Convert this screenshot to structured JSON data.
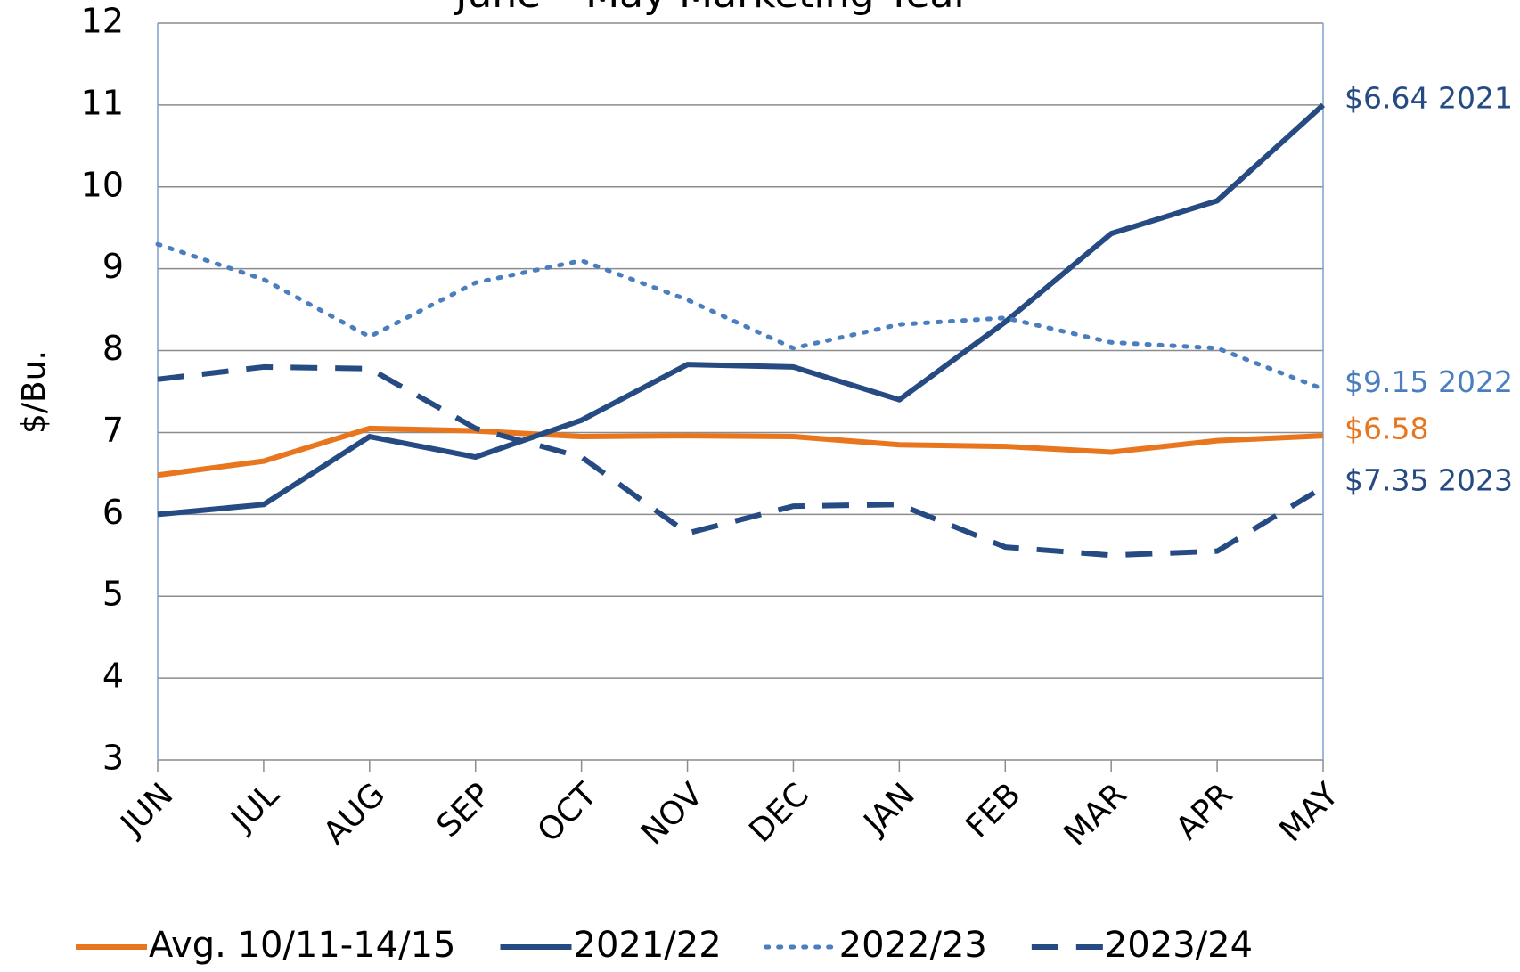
{
  "chart_data": {
    "type": "line",
    "title": "June – May Marketing Year",
    "y_label": "$/Bu.",
    "categories": [
      "JUN",
      "JUL",
      "AUG",
      "SEP",
      "OCT",
      "NOV",
      "DEC",
      "JAN",
      "FEB",
      "MAR",
      "APR",
      "MAY"
    ],
    "ylim": [
      3,
      12
    ],
    "yticks": [
      3,
      4,
      5,
      6,
      7,
      8,
      9,
      10,
      11,
      12
    ],
    "grid": true,
    "legend": "bottom",
    "series": [
      {
        "name": "Avg. 10/11-14/15",
        "color": "#e8761e",
        "dash": "solid",
        "end_label": "$6.58",
        "values": [
          6.48,
          6.65,
          7.05,
          7.02,
          6.95,
          6.96,
          6.95,
          6.85,
          6.83,
          6.76,
          6.9,
          6.96
        ]
      },
      {
        "name": "2021/22",
        "color": "#264b82",
        "dash": "solid",
        "end_label": "$6.64 2021",
        "values": [
          6.0,
          6.12,
          6.95,
          6.7,
          7.15,
          7.83,
          7.8,
          7.4,
          8.35,
          9.43,
          9.83,
          11.0
        ]
      },
      {
        "name": "2022/23",
        "color": "#4a7ebf",
        "dash": "dotted",
        "end_label": "$9.15 2022",
        "values": [
          9.3,
          8.87,
          8.17,
          8.83,
          9.1,
          8.62,
          8.03,
          8.32,
          8.4,
          8.1,
          8.03,
          7.53
        ]
      },
      {
        "name": "2023/24",
        "color": "#264b82",
        "dash": "dashed",
        "end_label": "$7.35 2023",
        "values": [
          7.65,
          7.8,
          7.78,
          7.05,
          6.7,
          5.77,
          6.1,
          6.12,
          5.6,
          5.5,
          5.55,
          6.33
        ]
      }
    ]
  }
}
